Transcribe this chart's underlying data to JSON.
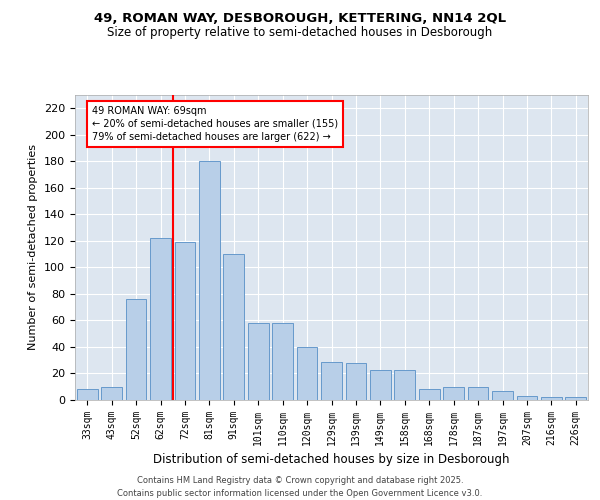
{
  "title1": "49, ROMAN WAY, DESBOROUGH, KETTERING, NN14 2QL",
  "title2": "Size of property relative to semi-detached houses in Desborough",
  "xlabel": "Distribution of semi-detached houses by size in Desborough",
  "ylabel": "Number of semi-detached properties",
  "categories": [
    "33sqm",
    "43sqm",
    "52sqm",
    "62sqm",
    "72sqm",
    "81sqm",
    "91sqm",
    "101sqm",
    "110sqm",
    "120sqm",
    "129sqm",
    "139sqm",
    "149sqm",
    "158sqm",
    "168sqm",
    "178sqm",
    "187sqm",
    "197sqm",
    "207sqm",
    "216sqm",
    "226sqm"
  ],
  "values": [
    8,
    10,
    76,
    122,
    119,
    180,
    110,
    58,
    58,
    40,
    29,
    28,
    23,
    23,
    8,
    10,
    10,
    7,
    3,
    2,
    2
  ],
  "bar_color": "#b8cfe8",
  "bar_edge_color": "#6699cc",
  "background_color": "#dde6f0",
  "grid_color": "#ffffff",
  "vline_x": 3.5,
  "vline_color": "red",
  "annotation_text": "49 ROMAN WAY: 69sqm\n← 20% of semi-detached houses are smaller (155)\n79% of semi-detached houses are larger (622) →",
  "annotation_box_color": "white",
  "annotation_box_edge": "red",
  "ylim": [
    0,
    230
  ],
  "yticks": [
    0,
    20,
    40,
    60,
    80,
    100,
    120,
    140,
    160,
    180,
    200,
    220
  ],
  "footer": "Contains HM Land Registry data © Crown copyright and database right 2025.\nContains public sector information licensed under the Open Government Licence v3.0."
}
